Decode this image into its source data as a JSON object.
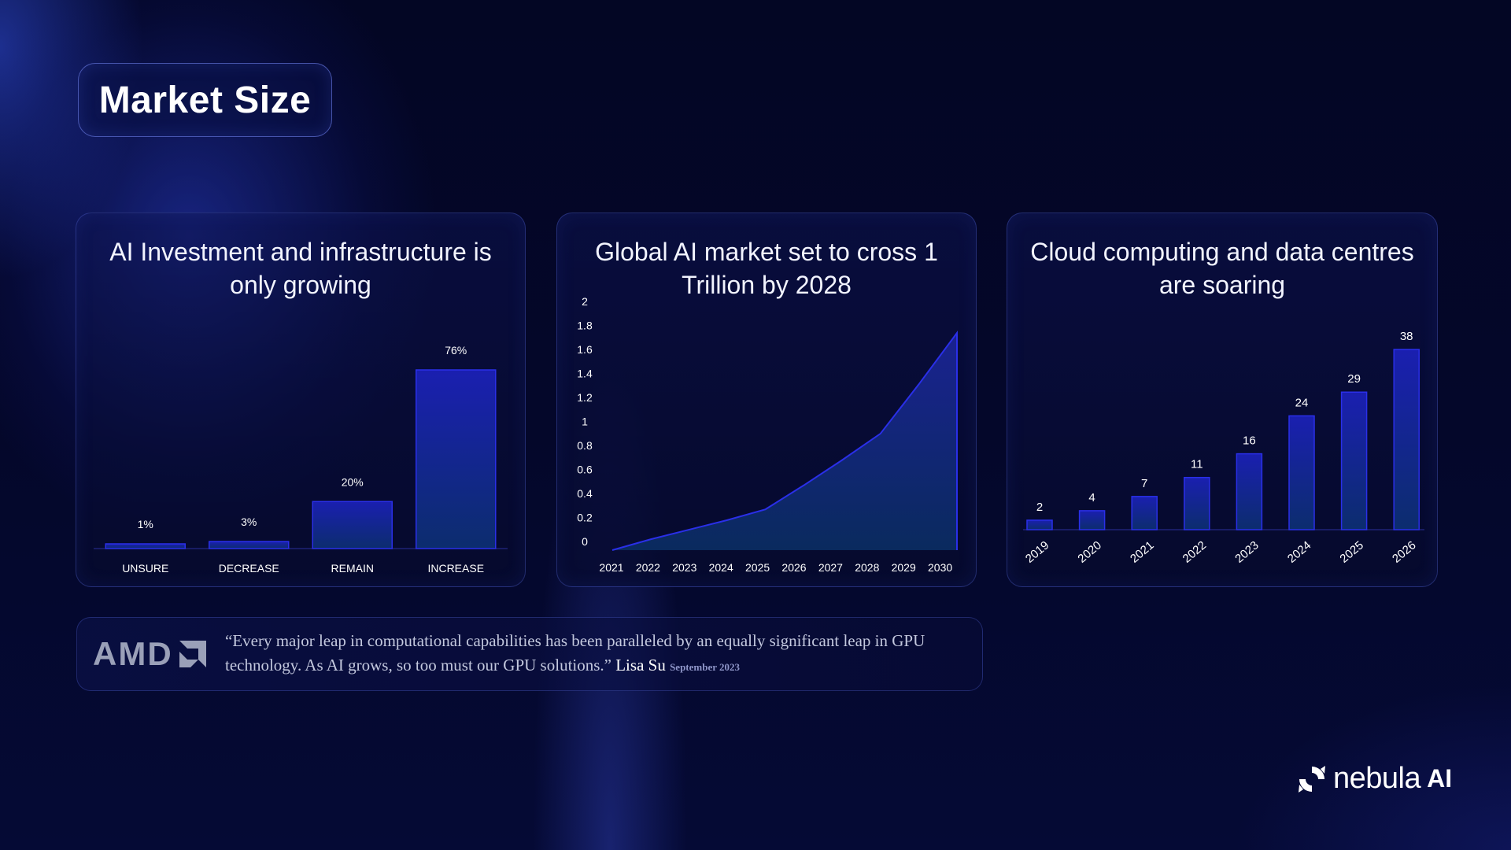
{
  "page": {
    "title": "Market Size"
  },
  "cards": [
    {
      "title": "AI Investment and infrastructure is only growing"
    },
    {
      "title": "Global AI market set to cross 1 Trillion by 2028"
    },
    {
      "title": "Cloud computing and data centres are soaring"
    }
  ],
  "chart_data": [
    {
      "type": "bar",
      "title": "AI Investment and infrastructure is only growing",
      "categories": [
        "UNSURE",
        "DECREASE",
        "REMAIN",
        "INCREASE"
      ],
      "values": [
        1,
        3,
        20,
        76
      ],
      "data_labels": [
        "1%",
        "3%",
        "20%",
        "76%"
      ],
      "ylim": [
        0,
        80
      ],
      "grid": false,
      "colors": {
        "fill_top": "#1a1fb0",
        "fill_bottom": "#0c2d6e",
        "stroke": "#2a2fe8"
      }
    },
    {
      "type": "area",
      "title": "Global AI market set to cross 1 Trillion by 2028",
      "x": [
        "2021",
        "2022",
        "2023",
        "2024",
        "2025",
        "2026",
        "2027",
        "2028",
        "2029",
        "2030"
      ],
      "values": [
        0,
        0.09,
        0.17,
        0.25,
        0.34,
        0.54,
        0.75,
        0.97,
        1.38,
        1.81
      ],
      "yticks": [
        "0",
        "0.2",
        "0.4",
        "0.6",
        "0.8",
        "1",
        "1.2",
        "1.4",
        "1.6",
        "1.8",
        "2"
      ],
      "ylim": [
        0,
        2
      ],
      "grid": false,
      "colors": {
        "fill_top": "#1a2290",
        "fill_bottom": "#0a2a5e",
        "stroke": "#2a2fe8"
      }
    },
    {
      "type": "bar",
      "title": "Cloud computing and data centres are soaring",
      "categories": [
        "2019",
        "2020",
        "2021",
        "2022",
        "2023",
        "2024",
        "2025",
        "2026"
      ],
      "values": [
        2,
        4,
        7,
        11,
        16,
        24,
        29,
        38
      ],
      "ylim": [
        0,
        40
      ],
      "grid": false,
      "colors": {
        "fill_top": "#1a1fb0",
        "fill_bottom": "#0c2d6e",
        "stroke": "#2a2fe8"
      }
    }
  ],
  "quote": {
    "logo_text": "AMD",
    "text": "“Every major leap in computational capabilities has been paralleled by an equally significant leap in GPU technology. As AI grows, so too must our GPU solutions.”",
    "author": "Lisa Su",
    "date": "September 2023"
  },
  "brand": {
    "name": "nebula",
    "suffix": "AI",
    "icon": "nebula-swirl-icon"
  }
}
